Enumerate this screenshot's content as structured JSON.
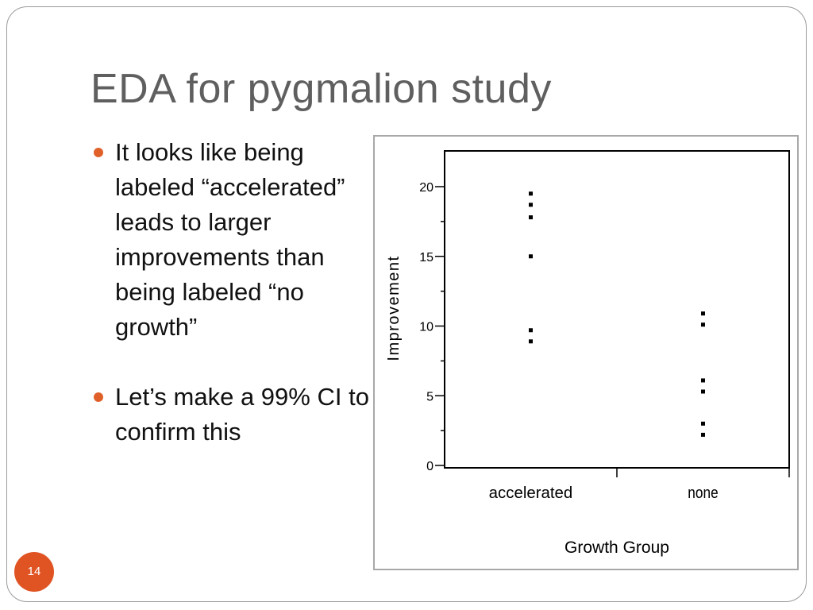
{
  "slide": {
    "title": "EDA for pygmalion study",
    "page_number": "14",
    "bullets": [
      "It looks like being labeled “accelerated” leads to larger improvements than being labeled “no growth”",
      "Let’s make a 99% CI to confirm this"
    ],
    "accent_color": "#e05424"
  },
  "chart_data": {
    "type": "scatter",
    "xlabel": "Growth Group",
    "ylabel": "Improvement",
    "categories": [
      "accelerated",
      "none"
    ],
    "ylim": [
      0,
      22
    ],
    "yticks": [
      0,
      5,
      10,
      15,
      20
    ],
    "yticks_labels": [
      "0",
      "5",
      "10",
      "15",
      "20"
    ],
    "grid": false,
    "series": [
      {
        "points": [
          {
            "x": "accelerated",
            "y": 19.5
          },
          {
            "x": "accelerated",
            "y": 18.7
          },
          {
            "x": "accelerated",
            "y": 17.8
          },
          {
            "x": "accelerated",
            "y": 15.0
          },
          {
            "x": "accelerated",
            "y": 9.7
          },
          {
            "x": "accelerated",
            "y": 8.9
          },
          {
            "x": "none",
            "y": 10.9
          },
          {
            "x": "none",
            "y": 10.1
          },
          {
            "x": "none",
            "y": 6.1
          },
          {
            "x": "none",
            "y": 5.3
          },
          {
            "x": "none",
            "y": 3.0
          },
          {
            "x": "none",
            "y": 2.2
          }
        ]
      }
    ]
  }
}
